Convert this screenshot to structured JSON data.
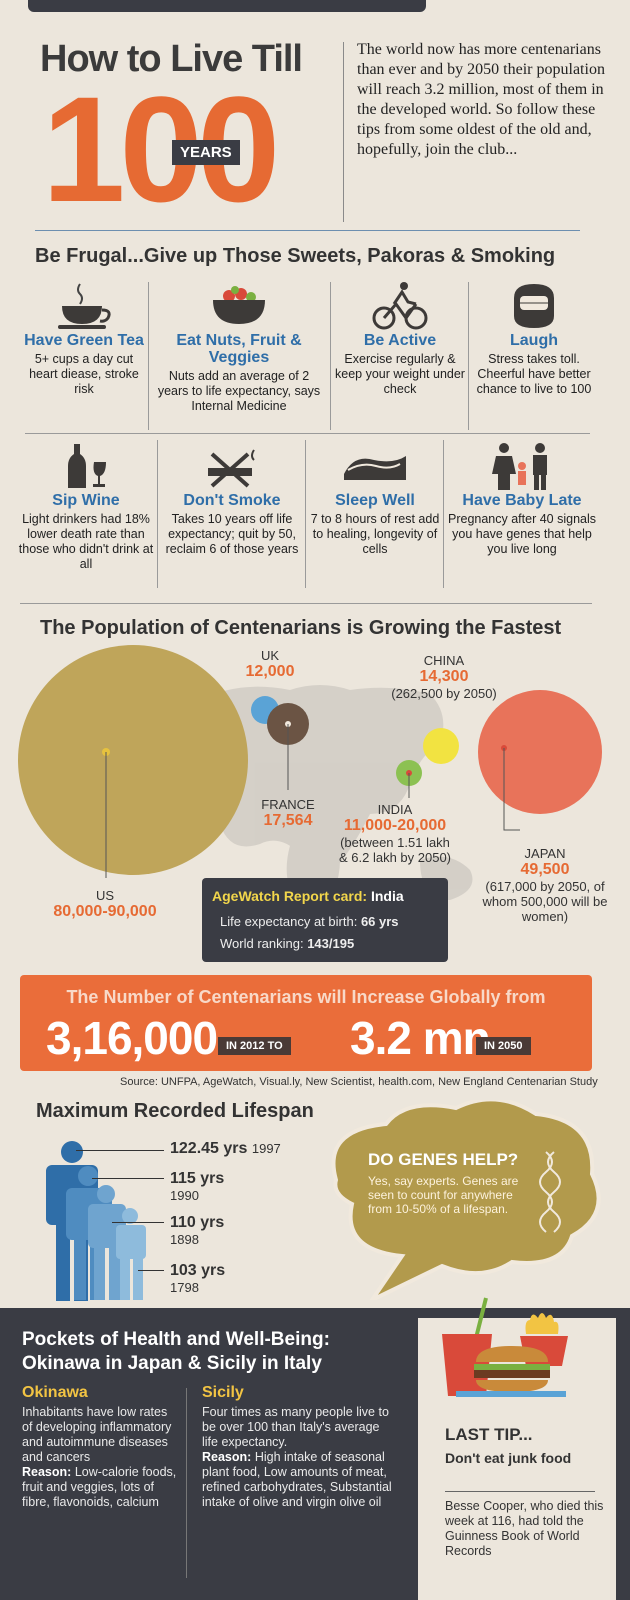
{
  "header": {
    "title": "How to Live Till",
    "number": "100",
    "years_label": "YEARS",
    "intro": "The world now has more centenarians than ever and by 2050 their population will reach 3.2 million, most of them in the developed world. So follow these tips from some oldest of the old and, hopefully, join the club..."
  },
  "frugal": {
    "heading": "Be Frugal...Give up Those Sweets, Pakoras & Smoking",
    "tips": [
      {
        "icon": "tea-cup-icon",
        "title": "Have Green Tea",
        "desc": "5+ cups a day cut heart diease, stroke risk"
      },
      {
        "icon": "fruit-bowl-icon",
        "title": "Eat Nuts, Fruit & Veggies",
        "desc": "Nuts add an average of 2 years to life expectancy, says Internal Medicine"
      },
      {
        "icon": "cyclist-icon",
        "title": "Be Active",
        "desc": "Exercise regularly & keep your weight under check"
      },
      {
        "icon": "laugh-face-icon",
        "title": "Laugh",
        "desc": "Stress takes toll. Cheerful have better chance to live to 100"
      },
      {
        "icon": "wine-icon",
        "title": "Sip Wine",
        "desc": "Light drinkers had 18% lower death rate than those who didn't drink at all"
      },
      {
        "icon": "no-smoking-icon",
        "title": "Don't Smoke",
        "desc": "Takes 10 years off life expectancy; quit by 50, reclaim 6 of those years"
      },
      {
        "icon": "sleeping-person-icon",
        "title": "Sleep Well",
        "desc": "7 to 8 hours of rest add to healing, longevity of cells"
      },
      {
        "icon": "family-icon",
        "title": "Have Baby Late",
        "desc": "Pregnancy after 40 signals you have genes that help you live long"
      }
    ]
  },
  "population": {
    "heading": "The Population of Centenarians is Growing the Fastest",
    "colors": {
      "us": "#bfa55a",
      "uk": "#5aa3d6",
      "france": "#6b5444",
      "china": "#f2e341",
      "india": "#8cc152",
      "japan": "#e8735a"
    },
    "us": {
      "name": "US",
      "value": "80,000-90,000"
    },
    "uk": {
      "name": "UK",
      "value": "12,000"
    },
    "france": {
      "name": "FRANCE",
      "value": "17,564"
    },
    "china": {
      "name": "CHINA",
      "value": "14,300",
      "note": "(262,500 by 2050)"
    },
    "india": {
      "name": "INDIA",
      "value": "11,000-20,000",
      "note": "(between 1.51 lakh & 6.2 lakh by 2050)"
    },
    "japan": {
      "name": "JAPAN",
      "value": "49,500",
      "note": "(617,000 by 2050, of whom 500,000 will be women)"
    },
    "agewatch": {
      "label": "AgeWatch Report card:",
      "country": "India",
      "life_label": "Life expectancy at birth:",
      "life_value": "66 yrs",
      "rank_label": "World ranking:",
      "rank_value": "143/195"
    }
  },
  "global": {
    "heading": "The Number of Centenarians will Increase Globally from",
    "value_2012": "3,16,000",
    "label_2012": "IN 2012 TO",
    "value_2050": "3.2 mn",
    "label_2050": "IN 2050"
  },
  "source": "Source: UNFPA, AgeWatch, Visual.ly, New Scientist, health.com, New England Centenarian Study",
  "lifespan": {
    "heading": "Maximum Recorded Lifespan",
    "records": [
      {
        "age": "122.45 yrs",
        "year": "1997"
      },
      {
        "age": "115 yrs",
        "year": "1990"
      },
      {
        "age": "110 yrs",
        "year": "1898"
      },
      {
        "age": "103 yrs",
        "year": "1798"
      }
    ],
    "genes_title": "DO GENES HELP?",
    "genes_text": "Yes, say experts. Genes are seen to count for anywhere from 10-50% of a lifespan."
  },
  "pockets": {
    "heading": "Pockets of Health and Well-Being: Okinawa in Japan & Sicily in Italy",
    "okinawa": {
      "name": "Okinawa",
      "text": "Inhabitants have low rates of developing inflammatory and autoimmune diseases and cancers",
      "reason_label": "Reason:",
      "reason": "Low-calorie foods, fruit and veggies, lots of fibre, flavonoids, calcium"
    },
    "sicily": {
      "name": "Sicily",
      "text": "Four times as many people live to be over 100 than Italy's average life expectancy.",
      "reason_label": "Reason:",
      "reason": "High intake of seasonal plant food, Low amounts of meat, refined carbohydrates, Substantial intake of olive and virgin olive oil"
    }
  },
  "last_tip": {
    "title": "LAST TIP...",
    "tip": "Don't eat junk food",
    "note": "Besse Cooper, who died this week at 116, had told the Guinness Book of World Records"
  }
}
